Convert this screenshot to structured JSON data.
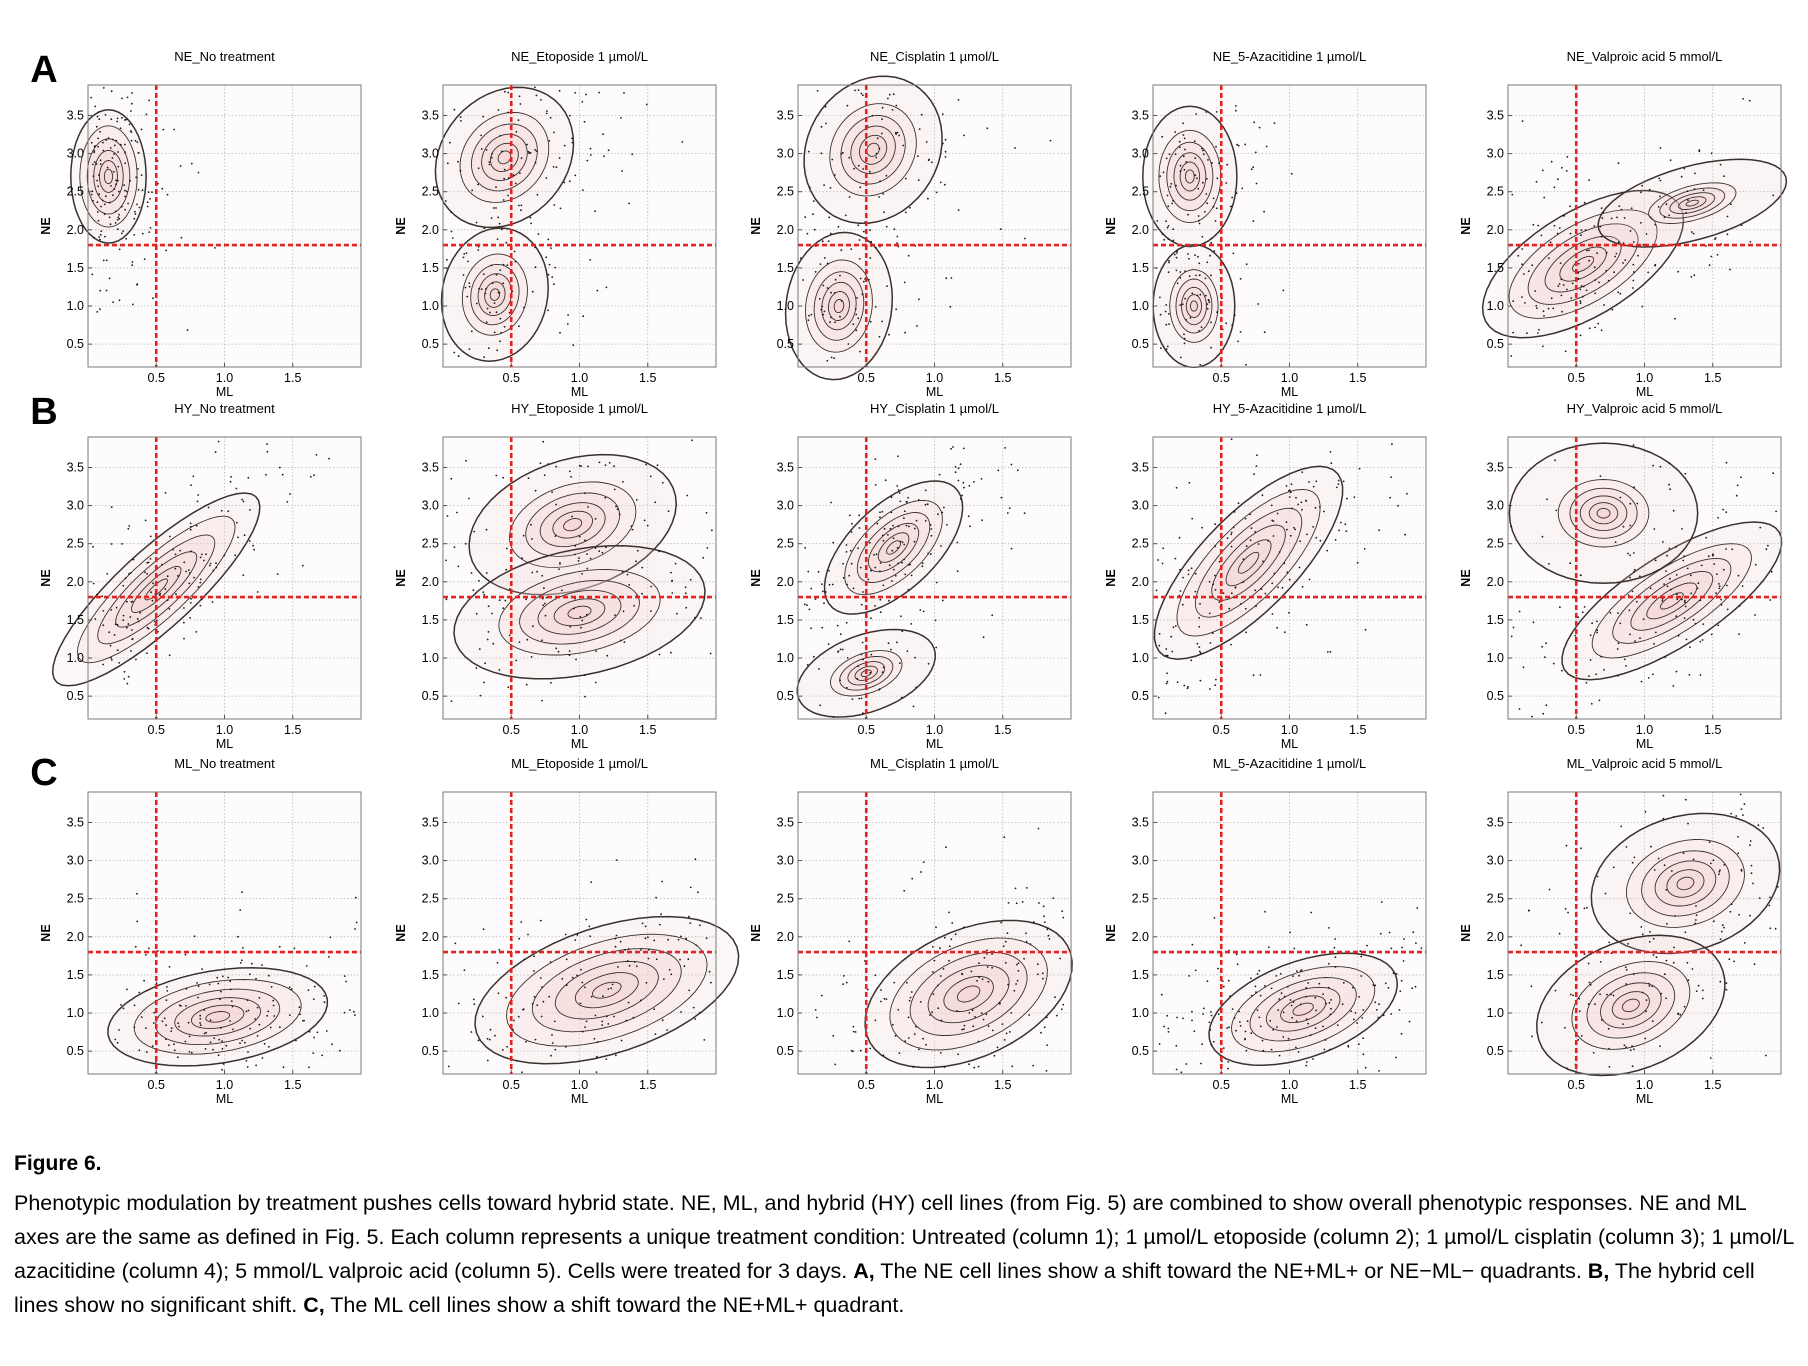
{
  "figure": {
    "panel_letters": [
      "A",
      "B",
      "C"
    ],
    "axes": {
      "xlabel": "ML",
      "ylabel": "NE",
      "xticks": [
        "0.5",
        "1.0",
        "1.5"
      ],
      "yticks": [
        "0.5",
        "1.0",
        "1.5",
        "2.0",
        "2.5",
        "3.0",
        "3.5"
      ],
      "xlim": [
        0,
        2.0
      ],
      "ylim": [
        0.2,
        3.9
      ],
      "threshold_x": 0.5,
      "threshold_y": 1.8,
      "threshold_color": "#e52222",
      "contour_fill": "#f4d3d3"
    },
    "column_treatments": [
      "No treatment",
      "Etoposide 1 µmol/L",
      "Cisplatin 1 µmol/L",
      "5-Azacitidine 1 µmol/L",
      "Valproic acid  5 mmol/L"
    ],
    "panels": [
      [
        {
          "title": "NE_No treatment",
          "xlabel": "ML",
          "ylabel": "NE"
        },
        {
          "title": "NE_Etoposide 1 µmol/L",
          "xlabel": "ML",
          "ylabel": "NE"
        },
        {
          "title": "NE_Cisplatin 1 µmol/L",
          "xlabel": "ML",
          "ylabel": "NE"
        },
        {
          "title": "NE_5-Azacitidine 1 µmol/L",
          "xlabel": "ML",
          "ylabel": "NE"
        },
        {
          "title": "NE_Valproic acid  5 mmol/L",
          "xlabel": "ML",
          "ylabel": "NE"
        }
      ],
      [
        {
          "title": "HY_No treatment",
          "xlabel": "ML",
          "ylabel": "NE"
        },
        {
          "title": "HY_Etoposide 1 µmol/L",
          "xlabel": "ML",
          "ylabel": "NE"
        },
        {
          "title": "HY_Cisplatin 1 µmol/L",
          "xlabel": "ML",
          "ylabel": "NE"
        },
        {
          "title": "HY_5-Azacitidine 1 µmol/L",
          "xlabel": "ML",
          "ylabel": "NE"
        },
        {
          "title": "HY_Valproic acid  5 mmol/L",
          "xlabel": "ML",
          "ylabel": "NE"
        }
      ],
      [
        {
          "title": "ML_No treatment",
          "xlabel": "ML",
          "ylabel": "NE"
        },
        {
          "title": "ML_Etoposide 1 µmol/L",
          "xlabel": "ML",
          "ylabel": "NE"
        },
        {
          "title": "ML_Cisplatin 1 µmol/L",
          "xlabel": "ML",
          "ylabel": "NE"
        },
        {
          "title": "ML_5-Azacitidine 1 µmol/L",
          "xlabel": "ML",
          "ylabel": "NE"
        },
        {
          "title": "ML_Valproic acid  5 mmol/L",
          "xlabel": "ML",
          "ylabel": "NE"
        }
      ]
    ]
  },
  "chart_data": {
    "type": "scatter",
    "description_units": "cluster centers (mx = ML, my = NE), spreads (sx, sy) and correlation r, in data units, estimated from the density contours",
    "xlabel": "ML",
    "ylabel": "NE",
    "xlim": [
      0,
      2.0
    ],
    "ylim": [
      0.2,
      3.9
    ],
    "threshold_lines": {
      "x": 0.5,
      "y": 1.8
    },
    "grid": true,
    "panels": [
      [
        {
          "title": "NE_No treatment",
          "clusters": [
            {
              "mx": 0.15,
              "my": 2.7,
              "sx": 0.12,
              "sy": 0.38,
              "r": 0.0,
              "weight": 1.0
            }
          ]
        },
        {
          "title": "NE_Etoposide 1 µmol/L",
          "clusters": [
            {
              "mx": 0.45,
              "my": 2.95,
              "sx": 0.22,
              "sy": 0.4,
              "r": 0.2,
              "weight": 0.55
            },
            {
              "mx": 0.38,
              "my": 1.15,
              "sx": 0.17,
              "sy": 0.38,
              "r": 0.1,
              "weight": 0.45
            }
          ]
        },
        {
          "title": "NE_Cisplatin 1 µmol/L",
          "clusters": [
            {
              "mx": 0.55,
              "my": 3.05,
              "sx": 0.22,
              "sy": 0.42,
              "r": 0.15,
              "weight": 0.5
            },
            {
              "mx": 0.3,
              "my": 1.0,
              "sx": 0.17,
              "sy": 0.42,
              "r": 0.1,
              "weight": 0.5
            }
          ]
        },
        {
          "title": "NE_5-Azacitidine 1 µmol/L",
          "clusters": [
            {
              "mx": 0.27,
              "my": 2.7,
              "sx": 0.15,
              "sy": 0.4,
              "r": 0.0,
              "weight": 0.6
            },
            {
              "mx": 0.3,
              "my": 1.0,
              "sx": 0.13,
              "sy": 0.35,
              "r": 0.0,
              "weight": 0.4
            }
          ]
        },
        {
          "title": "NE_Valproic acid  5 mmol/L",
          "clusters": [
            {
              "mx": 0.55,
              "my": 1.55,
              "sx": 0.32,
              "sy": 0.42,
              "r": 0.6,
              "weight": 0.9
            },
            {
              "mx": 1.35,
              "my": 2.35,
              "sx": 0.3,
              "sy": 0.25,
              "r": 0.5,
              "weight": 0.1
            }
          ]
        }
      ],
      [
        {
          "title": "HY_No treatment",
          "clusters": [
            {
              "mx": 0.5,
              "my": 1.9,
              "sx": 0.33,
              "sy": 0.55,
              "r": 0.85,
              "weight": 1.0
            }
          ]
        },
        {
          "title": "HY_Etoposide 1 µmol/L",
          "clusters": [
            {
              "mx": 0.95,
              "my": 2.75,
              "sx": 0.33,
              "sy": 0.4,
              "r": 0.3,
              "weight": 0.45
            },
            {
              "mx": 1.0,
              "my": 1.6,
              "sx": 0.4,
              "sy": 0.38,
              "r": 0.3,
              "weight": 0.55
            }
          ]
        },
        {
          "title": "HY_Cisplatin 1 µmol/L",
          "clusters": [
            {
              "mx": 0.7,
              "my": 2.45,
              "sx": 0.22,
              "sy": 0.38,
              "r": 0.6,
              "weight": 0.78
            },
            {
              "mx": 0.5,
              "my": 0.8,
              "sx": 0.22,
              "sy": 0.25,
              "r": 0.4,
              "weight": 0.22
            }
          ]
        },
        {
          "title": "HY_5-Azacitidine 1 µmol/L",
          "clusters": [
            {
              "mx": 0.7,
              "my": 2.25,
              "sx": 0.3,
              "sy": 0.55,
              "r": 0.75,
              "weight": 1.0
            }
          ]
        },
        {
          "title": "HY_Valproic acid  5 mmol/L",
          "clusters": [
            {
              "mx": 1.2,
              "my": 1.75,
              "sx": 0.35,
              "sy": 0.45,
              "r": 0.75,
              "weight": 0.85
            },
            {
              "mx": 0.7,
              "my": 2.9,
              "sx": 0.3,
              "sy": 0.4,
              "r": 0.0,
              "weight": 0.15
            }
          ]
        }
      ],
      [
        {
          "title": "ML_No treatment",
          "clusters": [
            {
              "mx": 0.95,
              "my": 0.95,
              "sx": 0.35,
              "sy": 0.28,
              "r": 0.3,
              "weight": 1.0
            }
          ]
        },
        {
          "title": "ML_Etoposide 1 µmol/L",
          "clusters": [
            {
              "mx": 1.2,
              "my": 1.3,
              "sx": 0.42,
              "sy": 0.42,
              "r": 0.45,
              "weight": 1.0
            }
          ]
        },
        {
          "title": "ML_Cisplatin 1 µmol/L",
          "clusters": [
            {
              "mx": 1.25,
              "my": 1.25,
              "sx": 0.33,
              "sy": 0.42,
              "r": 0.4,
              "weight": 1.0
            }
          ]
        },
        {
          "title": "ML_5-Azacitidine 1 µmol/L",
          "clusters": [
            {
              "mx": 1.1,
              "my": 1.05,
              "sx": 0.3,
              "sy": 0.32,
              "r": 0.45,
              "weight": 1.0
            }
          ]
        },
        {
          "title": "ML_Valproic acid  5 mmol/L",
          "clusters": [
            {
              "mx": 1.3,
              "my": 2.7,
              "sx": 0.3,
              "sy": 0.4,
              "r": 0.2,
              "weight": 0.5
            },
            {
              "mx": 0.9,
              "my": 1.1,
              "sx": 0.3,
              "sy": 0.4,
              "r": 0.3,
              "weight": 0.5
            }
          ]
        }
      ]
    ]
  },
  "caption": {
    "title": "Figure 6.",
    "body": [
      {
        "text": "Phenotypic modulation by treatment pushes cells toward hybrid state. NE, ML, and hybrid (HY) cell lines (from Fig. 5) are combined to show overall phenotypic responses. NE and ML axes are the same as defined in Fig. 5. Each column represents a unique treatment condition: Untreated (column 1); 1 µmol/L etoposide (column 2); 1 µmol/L cisplatin (column 3); 1 µmol/L azacitidine (column 4); 5 mmol/L valproic acid (column 5). Cells were treated for 3 days. ",
        "bold": false
      },
      {
        "text": "A,",
        "bold": true
      },
      {
        "text": " The NE cell lines show a shift toward the NE+ML+ or NE−ML− quadrants. ",
        "bold": false
      },
      {
        "text": "B,",
        "bold": true
      },
      {
        "text": " The hybrid cell lines show no significant shift. ",
        "bold": false
      },
      {
        "text": "C,",
        "bold": true
      },
      {
        "text": " The ML cell lines show a shift toward the NE+ML+ quadrant.",
        "bold": false
      }
    ]
  }
}
